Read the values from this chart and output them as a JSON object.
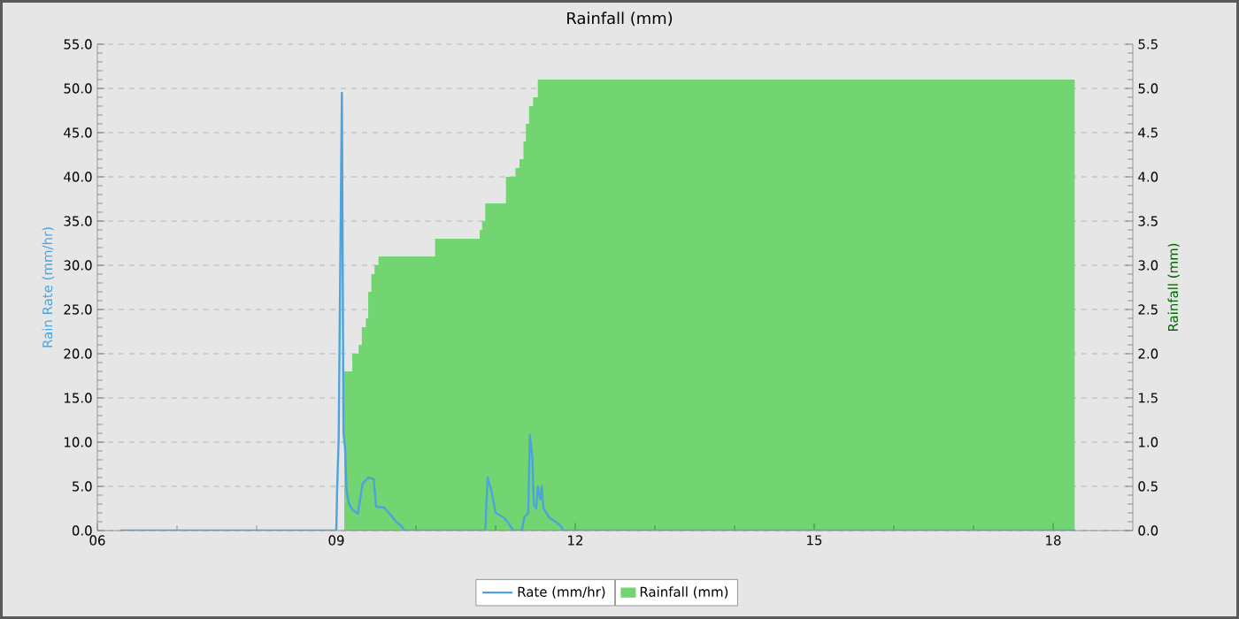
{
  "chart_data": {
    "type": "line",
    "title": "Rainfall (mm)",
    "ylabel": "Rain Rate (mm/hr)",
    "y2label": "Rainfall (mm)",
    "xlim": [
      6,
      19
    ],
    "xticks": [
      {
        "value": 6,
        "label": "06"
      },
      {
        "value": 9,
        "label": "09"
      },
      {
        "value": 12,
        "label": "12"
      },
      {
        "value": 15,
        "label": "15"
      },
      {
        "value": 18,
        "label": "18"
      }
    ],
    "ylim": [
      0,
      55
    ],
    "yticks": [
      {
        "value": 0,
        "label": "0.0"
      },
      {
        "value": 5,
        "label": "5.0"
      },
      {
        "value": 10,
        "label": "10.0"
      },
      {
        "value": 15,
        "label": "15.0"
      },
      {
        "value": 20,
        "label": "20.0"
      },
      {
        "value": 25,
        "label": "25.0"
      },
      {
        "value": 30,
        "label": "30.0"
      },
      {
        "value": 35,
        "label": "35.0"
      },
      {
        "value": 40,
        "label": "40.0"
      },
      {
        "value": 45,
        "label": "45.0"
      },
      {
        "value": 50,
        "label": "50.0"
      },
      {
        "value": 55,
        "label": "55.0"
      }
    ],
    "y2lim": [
      0,
      5.5
    ],
    "y2ticks": [
      {
        "value": 0,
        "label": "0.0"
      },
      {
        "value": 0.5,
        "label": "0.5"
      },
      {
        "value": 1,
        "label": "1.0"
      },
      {
        "value": 1.5,
        "label": "1.5"
      },
      {
        "value": 2,
        "label": "2.0"
      },
      {
        "value": 2.5,
        "label": "2.5"
      },
      {
        "value": 3,
        "label": "3.0"
      },
      {
        "value": 3.5,
        "label": "3.5"
      },
      {
        "value": 4,
        "label": "4.0"
      },
      {
        "value": 4.5,
        "label": "4.5"
      },
      {
        "value": 5,
        "label": "5.0"
      },
      {
        "value": 5.5,
        "label": "5.5"
      }
    ],
    "grid": true,
    "legend": "bottom",
    "series": [
      {
        "name": "Rainfall (mm)",
        "type": "area",
        "axis": "y2",
        "color": "#72d572",
        "x": [
          9.0,
          9.1,
          9.2,
          9.28,
          9.32,
          9.37,
          9.4,
          9.44,
          9.48,
          9.53,
          10.24,
          10.8,
          10.83,
          10.87,
          11.13,
          11.25,
          11.3,
          11.35,
          11.38,
          11.42,
          11.47,
          11.53,
          18.27
        ],
        "values": [
          0,
          1.8,
          2.0,
          2.1,
          2.3,
          2.4,
          2.7,
          2.9,
          3.0,
          3.1,
          3.3,
          3.4,
          3.5,
          3.7,
          4.0,
          4.1,
          4.2,
          4.4,
          4.6,
          4.8,
          4.9,
          5.1,
          5.1
        ]
      },
      {
        "name": "Rate (mm/hr)",
        "type": "line",
        "color": "#4ca3dd",
        "x": [
          6.29,
          9.0,
          9.01,
          9.03,
          9.05,
          9.07,
          9.09,
          9.11,
          9.13,
          9.16,
          9.2,
          9.27,
          9.33,
          9.4,
          9.47,
          9.5,
          9.6,
          9.68,
          9.75,
          9.82,
          9.85,
          10.87,
          10.9,
          10.95,
          11.0,
          11.1,
          11.15,
          11.2,
          11.22,
          11.33,
          11.36,
          11.41,
          11.43,
          11.46,
          11.48,
          11.51,
          11.53,
          11.56,
          11.58,
          11.6,
          11.67,
          11.75,
          11.82,
          11.85,
          18.27
        ],
        "values": [
          0,
          0,
          4.5,
          10.5,
          30.4,
          49.5,
          11,
          9.3,
          4.4,
          3,
          2.4,
          1.9,
          5.3,
          6,
          5.8,
          2.7,
          2.6,
          1.8,
          1,
          0.5,
          0,
          0,
          6,
          4.4,
          2,
          1.5,
          1,
          0.3,
          0,
          0,
          1.5,
          2,
          10.8,
          8.4,
          3,
          2.5,
          5,
          3.5,
          5,
          2.5,
          1.5,
          1,
          0.5,
          0,
          0
        ]
      }
    ]
  }
}
